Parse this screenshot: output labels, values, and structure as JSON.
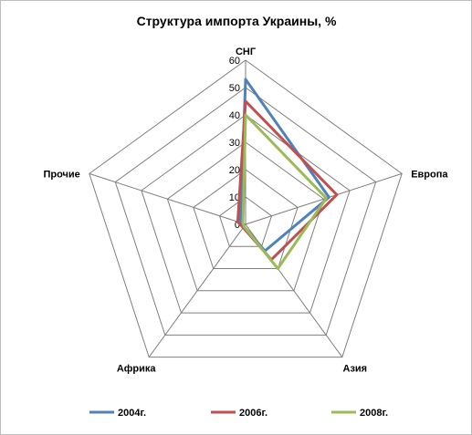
{
  "chart_data": {
    "type": "radar",
    "title": "Структура импорта Украины, %",
    "categories": [
      "СНГ",
      "Европа",
      "Азия",
      "Африка",
      "Прочие"
    ],
    "rlim": [
      0,
      60
    ],
    "ticks": [
      0,
      10,
      20,
      30,
      40,
      50,
      60
    ],
    "grid": true,
    "legend_position": "bottom",
    "series": [
      {
        "name": "2004г.",
        "color": "#4f81bd",
        "values": [
          53,
          32,
          12,
          1,
          2
        ]
      },
      {
        "name": "2006г.",
        "color": "#c0504d",
        "values": [
          45,
          35,
          16,
          1.5,
          3
        ]
      },
      {
        "name": "2008г.",
        "color": "#9bbb59",
        "values": [
          40,
          31,
          20,
          1,
          1
        ]
      }
    ]
  }
}
